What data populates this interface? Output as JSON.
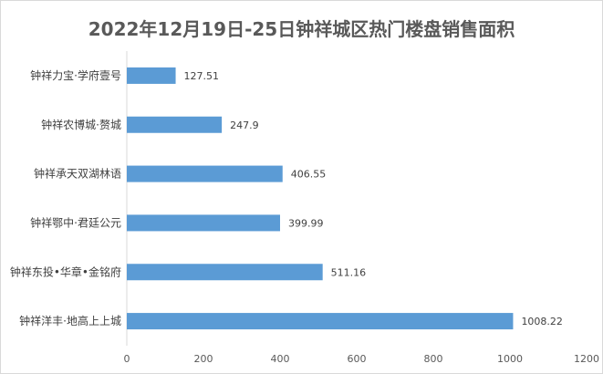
{
  "chart_data": {
    "type": "bar",
    "orientation": "horizontal",
    "title": "2022年12月19日-25日钟祥城区热门楼盘销售面积",
    "categories": [
      "钟祥力宝·学府壹号",
      "钟祥农博城·赘城",
      "钟祥承天双湖林语",
      "钟祥鄂中·君廷公元",
      "钟祥东投•华章•金铭府",
      "钟祥洋丰·地高上上城"
    ],
    "values": [
      127.51,
      247.9,
      406.55,
      399.99,
      511.16,
      1008.22
    ],
    "value_labels": [
      "127.51",
      "247.9",
      "406.55",
      "399.99",
      "511.16",
      "1008.22"
    ],
    "xlim": [
      0,
      1200
    ],
    "xticks": [
      0,
      200,
      400,
      600,
      800,
      1000,
      1200
    ],
    "xlabel": "",
    "ylabel": "",
    "grid": false,
    "legend": "none",
    "bar_color": "#5b9bd5",
    "axis_color": "#d9d9d9",
    "text_color": "#404040",
    "title_color": "#595959"
  }
}
